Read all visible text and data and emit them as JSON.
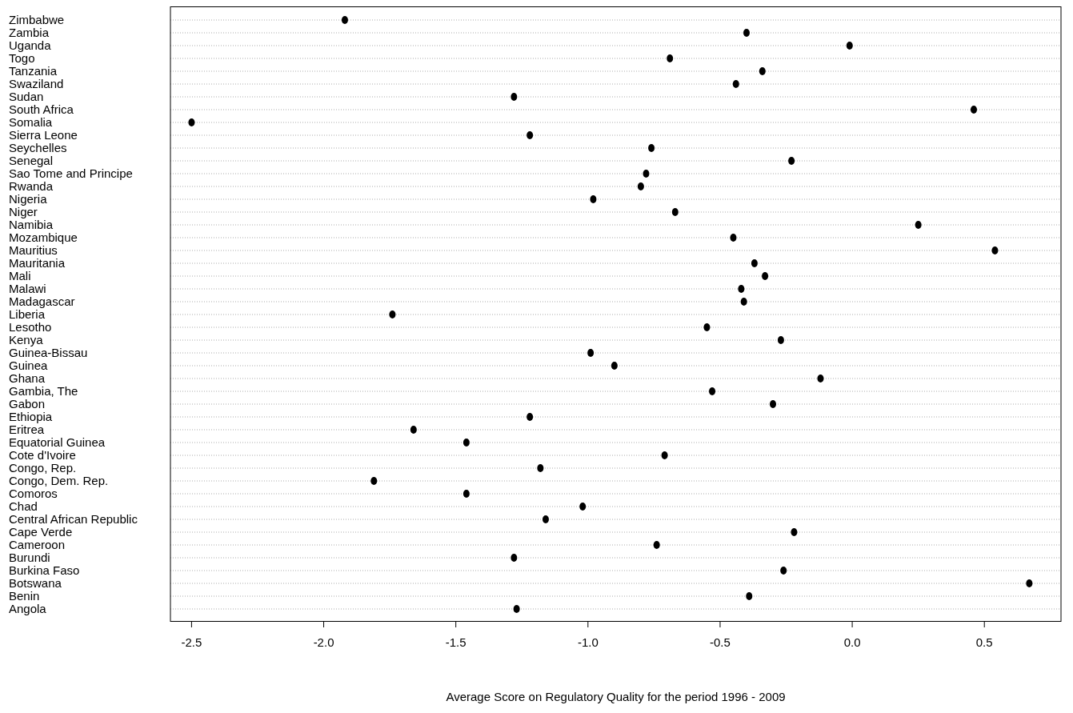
{
  "chart_data": {
    "type": "scatter",
    "orientation": "horizontal",
    "xlabel": "Average Score on Regulatory Quality for the period 1996 - 2009",
    "categories": [
      "Zimbabwe",
      "Zambia",
      "Uganda",
      "Togo",
      "Tanzania",
      "Swaziland",
      "Sudan",
      "South Africa",
      "Somalia",
      "Sierra Leone",
      "Seychelles",
      "Senegal",
      "Sao Tome and Principe",
      "Rwanda",
      "Nigeria",
      "Niger",
      "Namibia",
      "Mozambique",
      "Mauritius",
      "Mauritania",
      "Mali",
      "Malawi",
      "Madagascar",
      "Liberia",
      "Lesotho",
      "Kenya",
      "Guinea-Bissau",
      "Guinea",
      "Ghana",
      "Gambia, The",
      "Gabon",
      "Ethiopia",
      "Eritrea",
      "Equatorial Guinea",
      "Cote d'Ivoire",
      "Congo, Rep.",
      "Congo, Dem. Rep.",
      "Comoros",
      "Chad",
      "Central African Republic",
      "Cape Verde",
      "Cameroon",
      "Burundi",
      "Burkina Faso",
      "Botswana",
      "Benin",
      "Angola"
    ],
    "values": [
      -1.92,
      -0.4,
      -0.01,
      -0.69,
      -0.34,
      -0.44,
      -1.28,
      0.46,
      -2.5,
      -1.22,
      -0.76,
      -0.23,
      -0.78,
      -0.8,
      -0.98,
      -0.67,
      0.25,
      -0.45,
      0.54,
      -0.37,
      -0.33,
      -0.42,
      -0.41,
      -1.74,
      -0.55,
      -0.27,
      -0.99,
      -0.9,
      -0.12,
      -0.53,
      -0.3,
      -1.22,
      -1.66,
      -1.46,
      -0.71,
      -1.18,
      -1.81,
      -1.46,
      -1.02,
      -1.16,
      -0.22,
      -0.74,
      -1.28,
      -0.26,
      0.67,
      -0.39,
      -1.27
    ],
    "color": "#000000",
    "marker": "circle",
    "grid": "y",
    "xlim": [
      -2.58,
      0.79
    ],
    "xticks": [
      -2.5,
      {
        "value": -2,
        "label": "-2.0"
      },
      -1.5,
      {
        "value": -1,
        "label": "-1.0"
      },
      -0.5,
      {
        "value": 0,
        "label": "0.0"
      },
      0.5
    ]
  }
}
